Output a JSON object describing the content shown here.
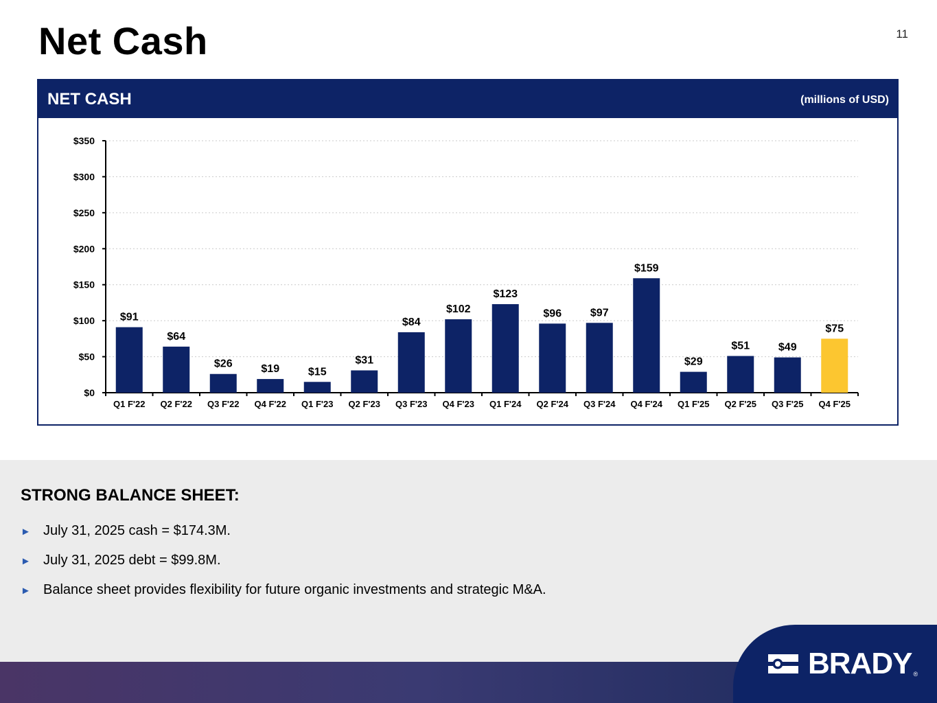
{
  "page": {
    "title": "Net Cash",
    "number": "11"
  },
  "panel": {
    "title": "NET CASH",
    "units": "(millions of USD)"
  },
  "chart_data": {
    "type": "bar",
    "title": "NET CASH",
    "ylabel": "millions of USD",
    "xlabel": "",
    "categories": [
      "Q1 F'22",
      "Q2 F'22",
      "Q3 F'22",
      "Q4 F'22",
      "Q1 F'23",
      "Q2 F'23",
      "Q3 F'23",
      "Q4 F'23",
      "Q1 F'24",
      "Q2 F'24",
      "Q3 F'24",
      "Q4 F'24",
      "Q1 F'25",
      "Q2 F'25",
      "Q3 F'25",
      "Q4 F'25"
    ],
    "values": [
      91,
      64,
      26,
      19,
      15,
      31,
      84,
      102,
      123,
      96,
      97,
      159,
      29,
      51,
      49,
      75
    ],
    "labels": [
      "$91",
      "$64",
      "$26",
      "$19",
      "$15",
      "$31",
      "$84",
      "$102",
      "$123",
      "$96",
      "$97",
      "$159",
      "$29",
      "$51",
      "$49",
      "$75"
    ],
    "ylim": [
      0,
      350
    ],
    "yticks": [
      0,
      50,
      100,
      150,
      200,
      250,
      300,
      350
    ],
    "ytick_labels": [
      "$0",
      "$50",
      "$100",
      "$150",
      "$200",
      "$250",
      "$300",
      "$350"
    ],
    "grid": true,
    "bar_color": "#0d2366",
    "highlight_color": "#fcc630",
    "highlight_index": 15
  },
  "balance": {
    "title": "STRONG BALANCE SHEET:",
    "items": [
      "July 31, 2025 cash = $174.3M.",
      "July 31, 2025 debt = $99.8M.",
      "Balance sheet provides flexibility for future organic investments and strategic M&A."
    ]
  },
  "logo": {
    "text": "BRADY",
    "reg": "®"
  },
  "colors": {
    "navy": "#0d2366",
    "gold": "#fcc630",
    "arrow": "#2b5bb0"
  }
}
